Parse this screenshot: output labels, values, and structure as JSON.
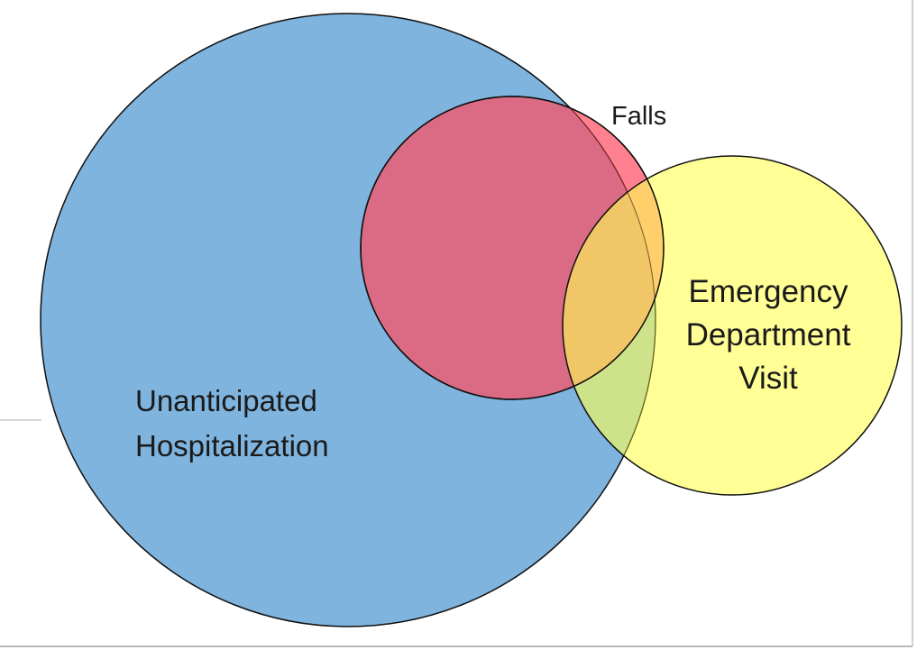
{
  "diagram": {
    "type": "venn",
    "sets": [
      {
        "label_lines": [
          "Unanticipated",
          "Hospitalization"
        ]
      },
      {
        "label_lines": [
          "Falls"
        ]
      },
      {
        "label_lines": [
          "Emergency",
          "Department",
          "Visit"
        ]
      }
    ]
  }
}
